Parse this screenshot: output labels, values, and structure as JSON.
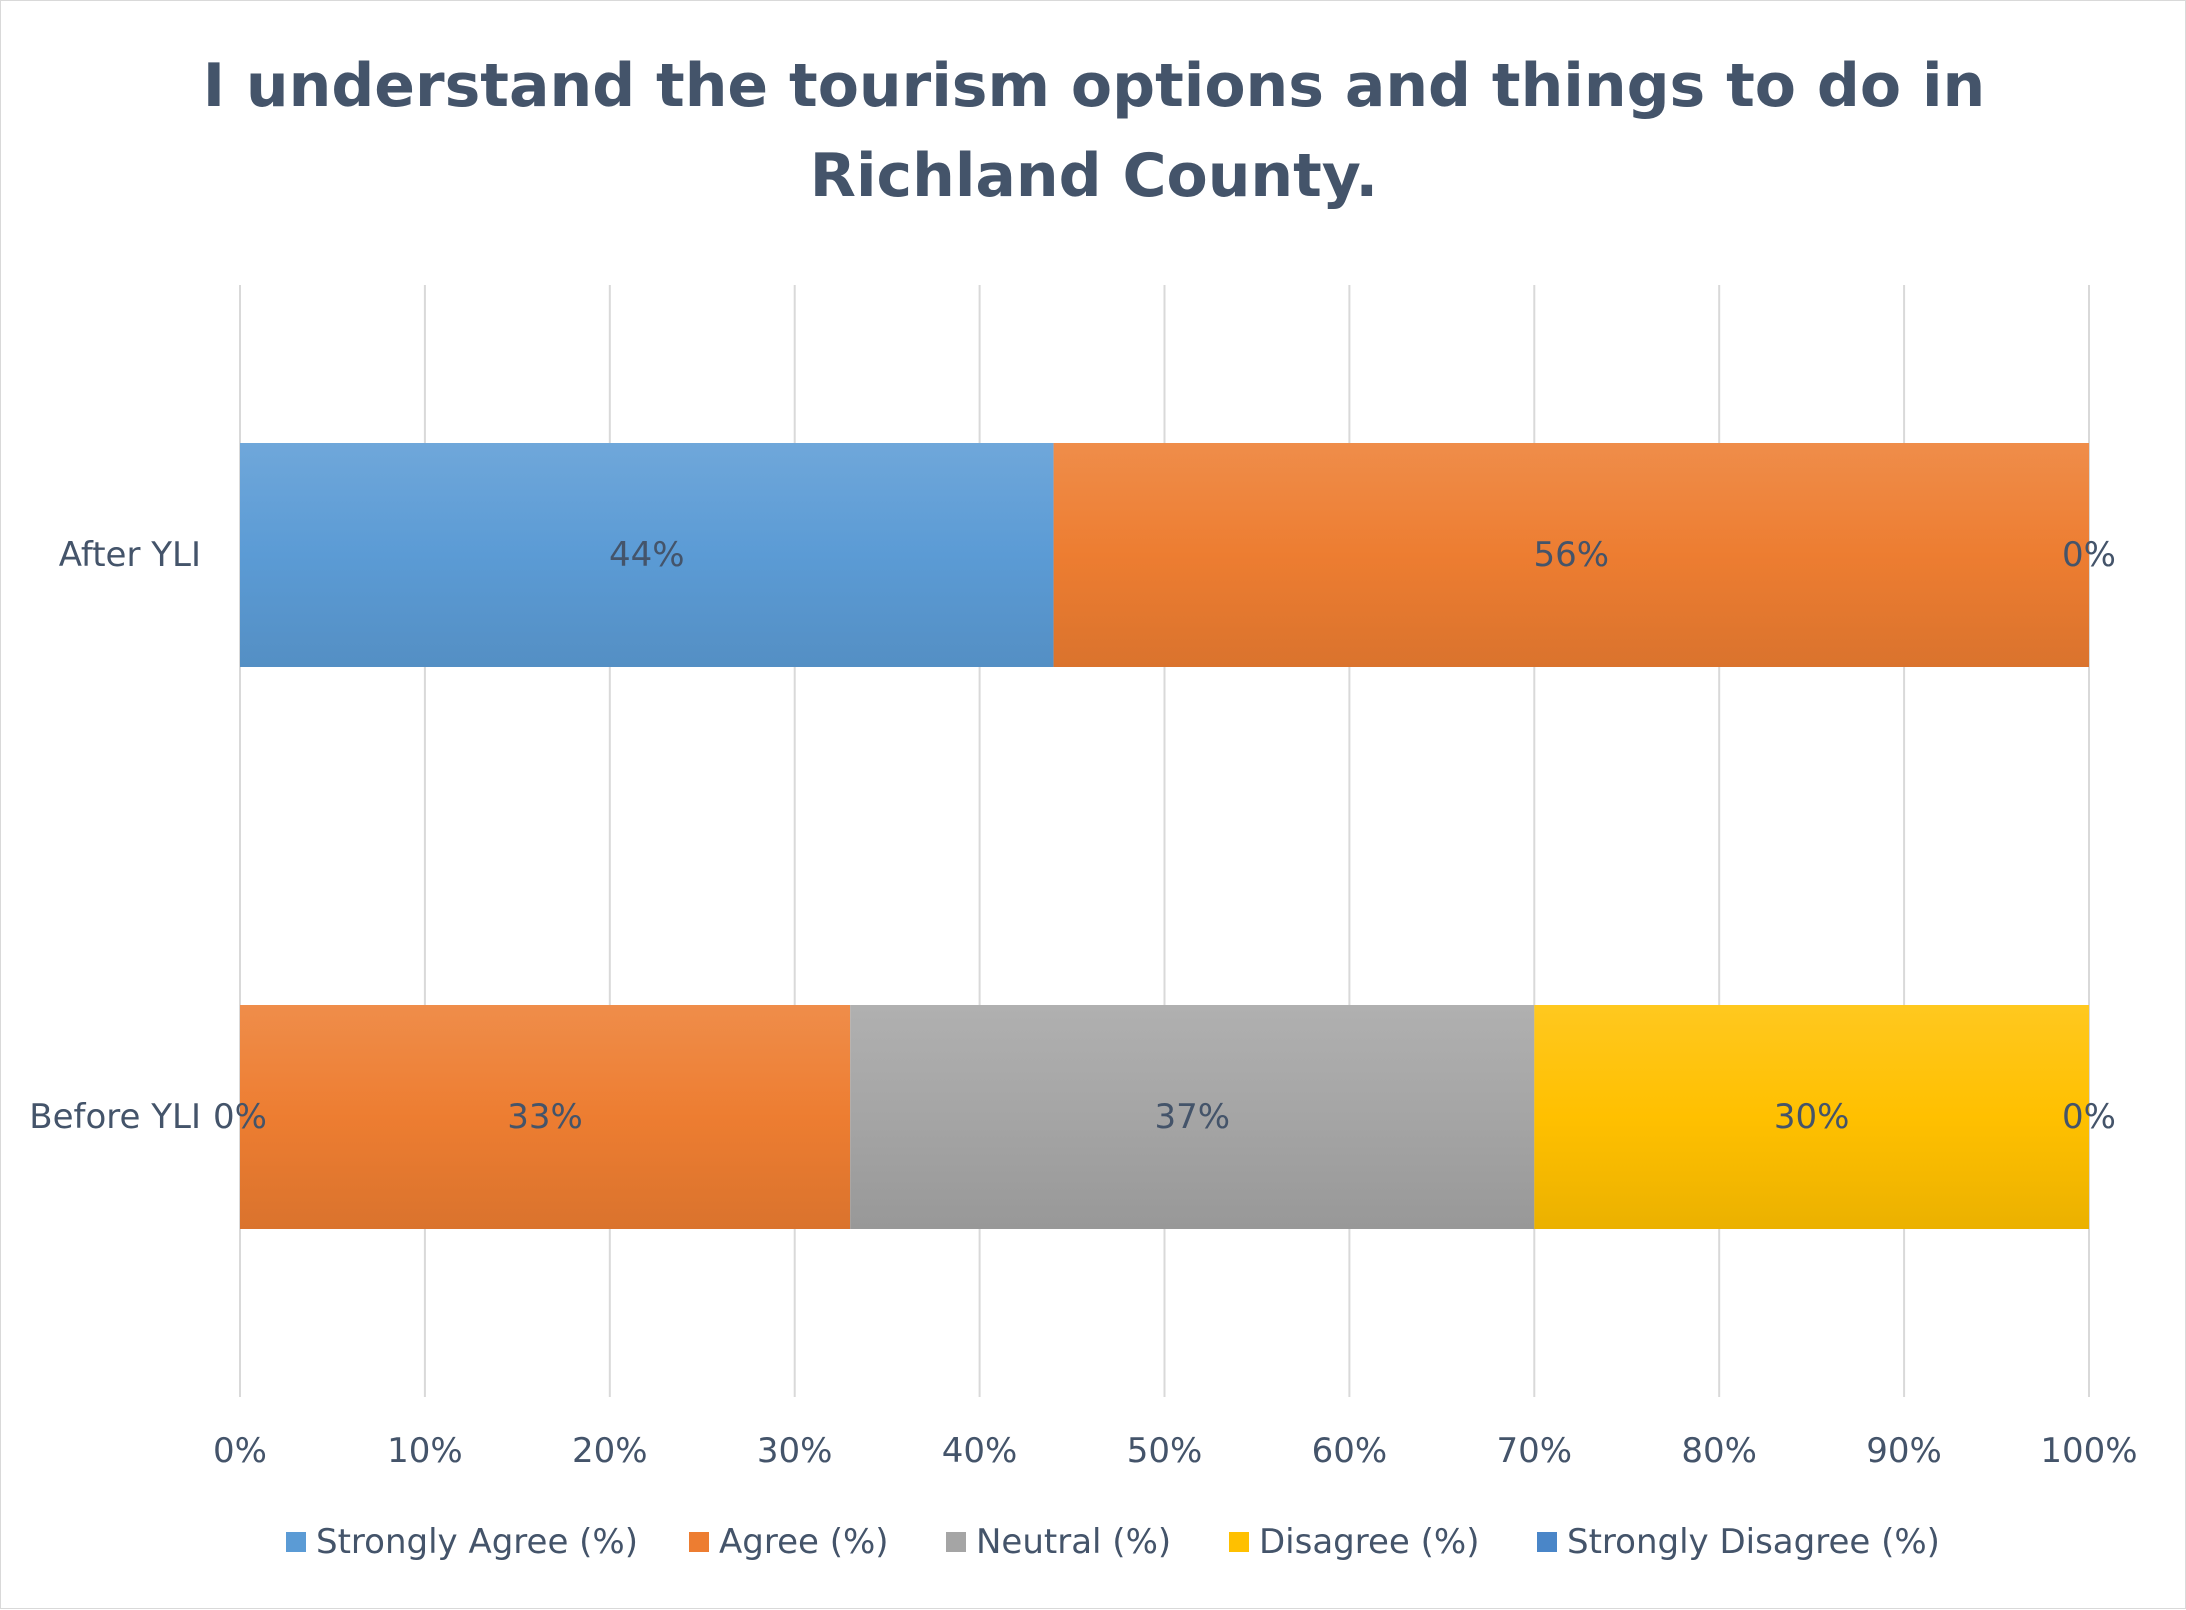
{
  "chart_data": {
    "type": "bar",
    "orientation": "horizontal",
    "stacked": "percent",
    "title_lines": [
      "I understand the tourism options and things to do in",
      "Richland County."
    ],
    "categories": [
      "After YLI",
      "Before YLI"
    ],
    "series": [
      {
        "name": "Strongly Agree (%)",
        "color": "#5b9bd5",
        "values": [
          44,
          0
        ],
        "labels": [
          "44%",
          ""
        ]
      },
      {
        "name": "Agree (%)",
        "color": "#ed7d31",
        "values": [
          56,
          33
        ],
        "labels": [
          "56%",
          "33%"
        ]
      },
      {
        "name": "Neutral (%)",
        "color": "#a5a5a5",
        "values": [
          0,
          37
        ],
        "labels": [
          "",
          "37%"
        ]
      },
      {
        "name": "Disagree (%)",
        "color": "#ffc000",
        "values": [
          0,
          30
        ],
        "labels": [
          "",
          "30%"
        ]
      },
      {
        "name": "Strongly Disagree (%)",
        "color": "#4a86c8",
        "values": [
          0,
          0
        ],
        "labels": [
          "0%",
          "0%"
        ]
      }
    ],
    "extra_labels": [
      {
        "category": "Before YLI",
        "series": "Strongly Agree (%)",
        "text": "0%"
      }
    ],
    "xlim": [
      0,
      100
    ],
    "x_ticks": [
      "0%",
      "10%",
      "20%",
      "30%",
      "40%",
      "50%",
      "60%",
      "70%",
      "80%",
      "90%",
      "100%"
    ],
    "grid": true,
    "legend_position": "bottom"
  }
}
